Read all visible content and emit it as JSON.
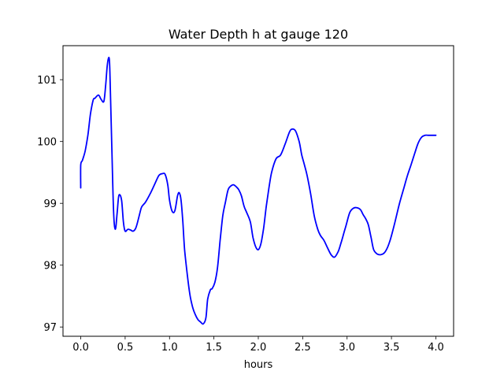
{
  "chart_data": {
    "type": "line",
    "title": "Water Depth h at gauge 120",
    "xlabel": "hours",
    "ylabel": "",
    "xlim": [
      -0.2,
      4.2
    ],
    "ylim": [
      96.85,
      101.55
    ],
    "xticks": [
      0.0,
      0.5,
      1.0,
      1.5,
      2.0,
      2.5,
      3.0,
      3.5,
      4.0
    ],
    "xtick_labels": [
      "0.0",
      "0.5",
      "1.0",
      "1.5",
      "2.0",
      "2.5",
      "3.0",
      "3.5",
      "4.0"
    ],
    "yticks": [
      97,
      98,
      99,
      100,
      101
    ],
    "ytick_labels": [
      "97",
      "98",
      "99",
      "100",
      "101"
    ],
    "grid": false,
    "line_color": "#0000ff",
    "series": [
      {
        "x": [
          0.0,
          0.0,
          0.02,
          0.05,
          0.08,
          0.11,
          0.14,
          0.16,
          0.2,
          0.23,
          0.26,
          0.28,
          0.3,
          0.32,
          0.33,
          0.35,
          0.37,
          0.39,
          0.41,
          0.43,
          0.46,
          0.48,
          0.5,
          0.53,
          0.56,
          0.59,
          0.62,
          0.65,
          0.68,
          0.7,
          0.73,
          0.78,
          0.83,
          0.88,
          0.92,
          0.95,
          0.98,
          1.0,
          1.03,
          1.06,
          1.09,
          1.11,
          1.13,
          1.15,
          1.17,
          1.2,
          1.23,
          1.26,
          1.29,
          1.32,
          1.35,
          1.38,
          1.41,
          1.43,
          1.46,
          1.48,
          1.51,
          1.54,
          1.57,
          1.6,
          1.63,
          1.66,
          1.69,
          1.72,
          1.75,
          1.78,
          1.81,
          1.84,
          1.87,
          1.91,
          1.94,
          1.97,
          2.0,
          2.03,
          2.06,
          2.09,
          2.12,
          2.15,
          2.2,
          2.25,
          2.3,
          2.35,
          2.38,
          2.42,
          2.46,
          2.49,
          2.52,
          2.55,
          2.59,
          2.63,
          2.67,
          2.7,
          2.74,
          2.78,
          2.82,
          2.86,
          2.9,
          2.93,
          2.96,
          2.99,
          3.03,
          3.07,
          3.11,
          3.15,
          3.18,
          3.21,
          3.24,
          3.27,
          3.3,
          3.34,
          3.38,
          3.42,
          3.45,
          3.48,
          3.51,
          3.54,
          3.57,
          3.6,
          3.64,
          3.68,
          3.72,
          3.76,
          3.8,
          3.84,
          3.88,
          3.92,
          3.96,
          4.0
        ],
        "y": [
          99.25,
          99.62,
          99.7,
          99.85,
          100.1,
          100.45,
          100.67,
          100.7,
          100.75,
          100.68,
          100.65,
          100.9,
          101.25,
          101.35,
          101.05,
          99.9,
          98.85,
          98.58,
          98.85,
          99.13,
          99.05,
          98.7,
          98.55,
          98.58,
          98.57,
          98.55,
          98.6,
          98.75,
          98.92,
          98.97,
          99.02,
          99.15,
          99.3,
          99.45,
          99.48,
          99.47,
          99.3,
          99.05,
          98.87,
          98.88,
          99.12,
          99.17,
          99.05,
          98.7,
          98.25,
          97.85,
          97.52,
          97.32,
          97.2,
          97.12,
          97.08,
          97.05,
          97.15,
          97.45,
          97.6,
          97.62,
          97.72,
          97.95,
          98.4,
          98.8,
          99.02,
          99.22,
          99.28,
          99.3,
          99.27,
          99.22,
          99.12,
          98.95,
          98.85,
          98.7,
          98.45,
          98.3,
          98.25,
          98.35,
          98.6,
          98.95,
          99.25,
          99.5,
          99.72,
          99.78,
          99.95,
          100.15,
          100.2,
          100.17,
          100.0,
          99.78,
          99.62,
          99.45,
          99.15,
          98.8,
          98.58,
          98.48,
          98.4,
          98.28,
          98.17,
          98.13,
          98.22,
          98.35,
          98.5,
          98.65,
          98.85,
          98.92,
          98.93,
          98.9,
          98.82,
          98.75,
          98.65,
          98.45,
          98.25,
          98.18,
          98.17,
          98.2,
          98.27,
          98.38,
          98.53,
          98.7,
          98.88,
          99.05,
          99.25,
          99.45,
          99.62,
          99.8,
          99.97,
          100.07,
          100.1,
          100.1,
          100.1,
          100.1
        ]
      }
    ]
  }
}
